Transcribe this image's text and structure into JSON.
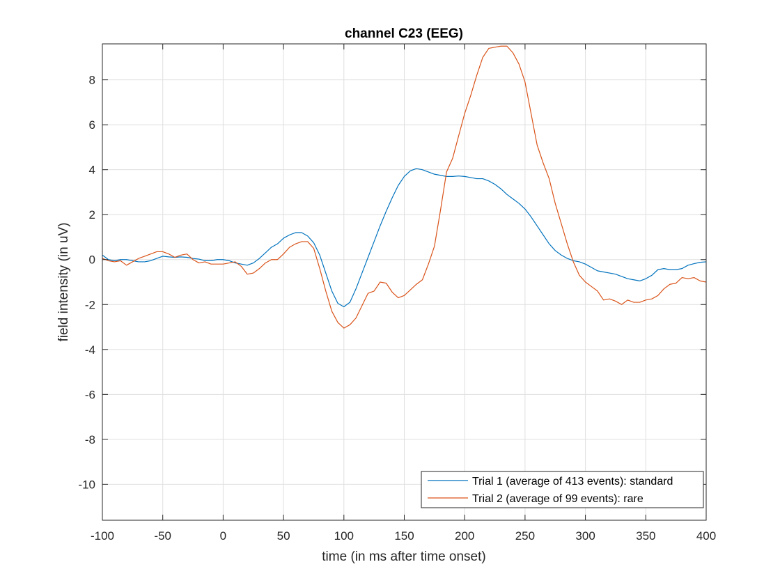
{
  "chart_data": {
    "type": "line",
    "title": "channel C23 (EEG)",
    "xlabel": "time (in ms after time onset)",
    "ylabel": "field intensity (in uV)",
    "xlim": [
      -100,
      400
    ],
    "ylim": [
      -11.6,
      9.6
    ],
    "xticks": [
      -100,
      -50,
      0,
      50,
      100,
      150,
      200,
      250,
      300,
      350,
      400
    ],
    "yticks": [
      -10,
      -8,
      -6,
      -4,
      -2,
      0,
      2,
      4,
      6,
      8
    ],
    "grid": true,
    "legend_position": "bottom-right",
    "series": [
      {
        "name": "Trial 1 (average of 413 events): standard",
        "color": "#0072BD",
        "x": [
          -100,
          -95,
          -90,
          -85,
          -80,
          -75,
          -70,
          -65,
          -60,
          -55,
          -50,
          -45,
          -40,
          -35,
          -30,
          -25,
          -20,
          -15,
          -10,
          -5,
          0,
          5,
          10,
          15,
          20,
          25,
          30,
          35,
          40,
          45,
          50,
          55,
          60,
          65,
          70,
          75,
          80,
          85,
          90,
          95,
          100,
          105,
          110,
          115,
          120,
          125,
          130,
          135,
          140,
          145,
          150,
          155,
          160,
          165,
          170,
          175,
          180,
          185,
          190,
          195,
          200,
          205,
          210,
          215,
          220,
          225,
          230,
          235,
          240,
          245,
          250,
          255,
          260,
          265,
          270,
          275,
          280,
          285,
          290,
          295,
          300,
          305,
          310,
          315,
          320,
          325,
          330,
          335,
          340,
          345,
          350,
          355,
          360,
          365,
          370,
          375,
          380,
          385,
          390,
          395,
          400
        ],
        "y": [
          0.2,
          0.0,
          -0.05,
          0.0,
          0.0,
          -0.05,
          -0.1,
          -0.1,
          -0.05,
          0.05,
          0.15,
          0.12,
          0.1,
          0.12,
          0.1,
          0.05,
          0.02,
          -0.05,
          -0.05,
          0.0,
          0.0,
          -0.05,
          -0.15,
          -0.2,
          -0.25,
          -0.15,
          0.05,
          0.3,
          0.55,
          0.7,
          0.95,
          1.1,
          1.2,
          1.2,
          1.05,
          0.75,
          0.2,
          -0.6,
          -1.4,
          -1.95,
          -2.1,
          -1.9,
          -1.3,
          -0.6,
          0.1,
          0.8,
          1.5,
          2.15,
          2.75,
          3.3,
          3.7,
          3.95,
          4.05,
          4.0,
          3.9,
          3.8,
          3.75,
          3.7,
          3.7,
          3.72,
          3.7,
          3.65,
          3.6,
          3.6,
          3.5,
          3.35,
          3.15,
          2.9,
          2.7,
          2.5,
          2.25,
          1.9,
          1.5,
          1.1,
          0.7,
          0.4,
          0.2,
          0.05,
          -0.05,
          -0.1,
          -0.2,
          -0.35,
          -0.5,
          -0.55,
          -0.6,
          -0.65,
          -0.75,
          -0.85,
          -0.9,
          -0.95,
          -0.85,
          -0.7,
          -0.45,
          -0.4,
          -0.45,
          -0.45,
          -0.4,
          -0.25,
          -0.18,
          -0.12,
          -0.1
        ]
      },
      {
        "name": "Trial 2 (average of 99 events): rare",
        "color": "#D95319",
        "x": [
          -100,
          -95,
          -90,
          -85,
          -80,
          -75,
          -70,
          -65,
          -60,
          -55,
          -50,
          -45,
          -40,
          -35,
          -30,
          -25,
          -20,
          -15,
          -10,
          -5,
          0,
          5,
          10,
          15,
          20,
          25,
          30,
          35,
          40,
          45,
          50,
          55,
          60,
          65,
          70,
          75,
          80,
          85,
          90,
          95,
          100,
          105,
          110,
          115,
          120,
          125,
          130,
          135,
          140,
          145,
          150,
          155,
          160,
          165,
          170,
          175,
          180,
          185,
          190,
          195,
          200,
          205,
          210,
          215,
          220,
          225,
          230,
          235,
          240,
          245,
          250,
          255,
          260,
          265,
          270,
          275,
          280,
          285,
          290,
          295,
          300,
          305,
          310,
          315,
          320,
          325,
          330,
          335,
          340,
          345,
          350,
          355,
          360,
          365,
          370,
          375,
          380,
          385,
          390,
          395,
          400
        ],
        "y": [
          0.05,
          -0.05,
          -0.1,
          -0.05,
          -0.25,
          -0.1,
          0.05,
          0.15,
          0.25,
          0.35,
          0.35,
          0.25,
          0.1,
          0.2,
          0.25,
          0.0,
          -0.15,
          -0.1,
          -0.2,
          -0.2,
          -0.2,
          -0.15,
          -0.1,
          -0.3,
          -0.65,
          -0.6,
          -0.4,
          -0.15,
          0.0,
          0.0,
          0.25,
          0.55,
          0.7,
          0.8,
          0.8,
          0.5,
          -0.4,
          -1.4,
          -2.3,
          -2.8,
          -3.05,
          -2.9,
          -2.6,
          -2.05,
          -1.5,
          -1.4,
          -1.0,
          -1.05,
          -1.45,
          -1.7,
          -1.6,
          -1.35,
          -1.1,
          -0.9,
          -0.2,
          0.6,
          2.2,
          3.9,
          4.5,
          5.5,
          6.5,
          7.3,
          8.2,
          9.0,
          9.4,
          9.45,
          9.5,
          9.5,
          9.2,
          8.7,
          7.9,
          6.5,
          5.1,
          4.3,
          3.6,
          2.5,
          1.6,
          0.7,
          -0.1,
          -0.7,
          -1.0,
          -1.2,
          -1.4,
          -1.8,
          -1.75,
          -1.85,
          -2.0,
          -1.8,
          -1.9,
          -1.9,
          -1.8,
          -1.75,
          -1.6,
          -1.3,
          -1.1,
          -1.05,
          -0.8,
          -0.85,
          -0.8,
          -0.95,
          -1.0
        ]
      }
    ]
  }
}
